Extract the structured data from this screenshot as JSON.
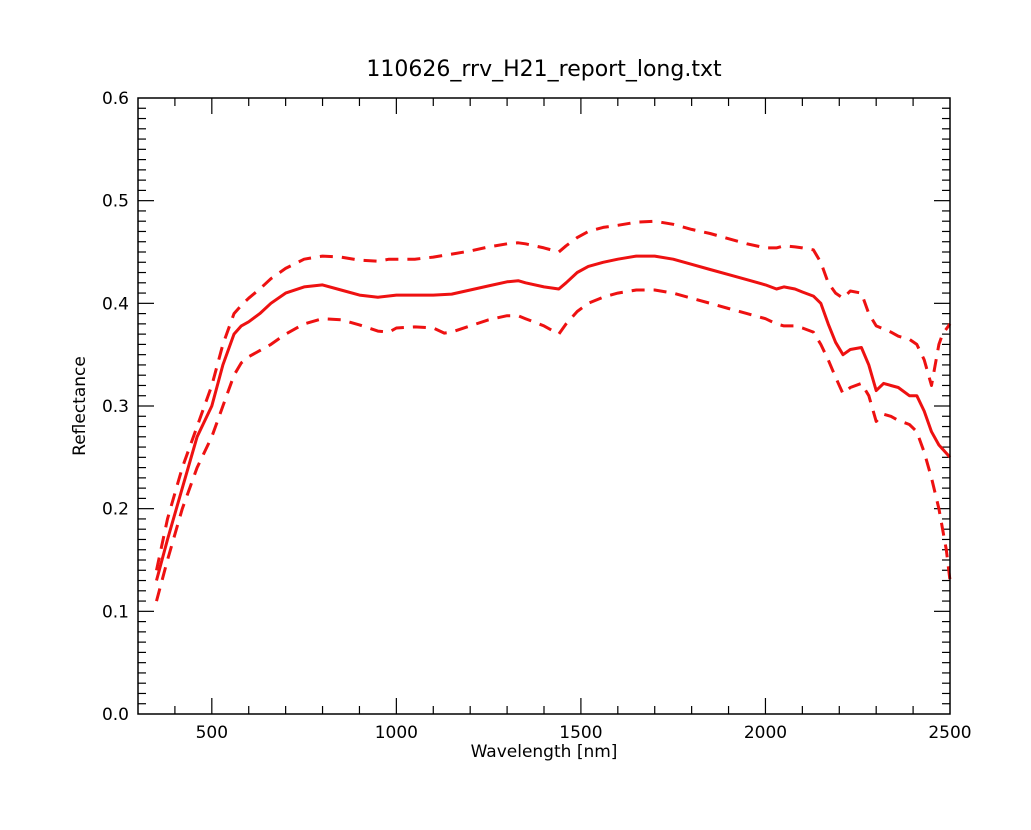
{
  "chart_data": {
    "type": "line",
    "title": "110626_rrv_H21_report_long.txt",
    "xlabel": "Wavelength [nm]",
    "ylabel": "Reflectance",
    "xlim": [
      300,
      2500
    ],
    "ylim": [
      0.0,
      0.6
    ],
    "x_ticks": [
      500,
      1000,
      1500,
      2000,
      2500
    ],
    "x_tick_labels": [
      "500",
      "1000",
      "1500",
      "2000",
      "2500"
    ],
    "y_ticks": [
      0.0,
      0.1,
      0.2,
      0.3,
      0.4,
      0.5,
      0.6
    ],
    "y_tick_labels": [
      "0.0",
      "0.1",
      "0.2",
      "0.3",
      "0.4",
      "0.5",
      "0.6"
    ],
    "grid": false,
    "color": "#ee1111",
    "series": [
      {
        "style": "solid",
        "x": [
          350,
          380,
          420,
          460,
          500,
          530,
          560,
          580,
          600,
          630,
          660,
          700,
          750,
          800,
          850,
          900,
          950,
          1000,
          1050,
          1100,
          1150,
          1200,
          1250,
          1300,
          1330,
          1350,
          1400,
          1440,
          1460,
          1490,
          1520,
          1560,
          1600,
          1650,
          1700,
          1750,
          1800,
          1850,
          1900,
          1950,
          2000,
          2030,
          2050,
          2080,
          2100,
          2130,
          2150,
          2170,
          2190,
          2210,
          2230,
          2260,
          2280,
          2300,
          2320,
          2340,
          2360,
          2390,
          2410,
          2430,
          2450,
          2470,
          2500
        ],
        "y": [
          0.13,
          0.17,
          0.22,
          0.27,
          0.3,
          0.34,
          0.37,
          0.378,
          0.382,
          0.39,
          0.4,
          0.41,
          0.416,
          0.418,
          0.413,
          0.408,
          0.406,
          0.408,
          0.408,
          0.408,
          0.409,
          0.413,
          0.417,
          0.421,
          0.422,
          0.42,
          0.416,
          0.414,
          0.42,
          0.43,
          0.436,
          0.44,
          0.443,
          0.446,
          0.446,
          0.443,
          0.438,
          0.433,
          0.428,
          0.423,
          0.418,
          0.414,
          0.416,
          0.414,
          0.411,
          0.407,
          0.4,
          0.38,
          0.362,
          0.35,
          0.355,
          0.357,
          0.34,
          0.315,
          0.322,
          0.32,
          0.318,
          0.31,
          0.31,
          0.295,
          0.275,
          0.262,
          0.25
        ]
      },
      {
        "style": "dashed",
        "x": [
          350,
          380,
          420,
          460,
          500,
          530,
          560,
          580,
          600,
          630,
          660,
          700,
          750,
          800,
          850,
          900,
          950,
          980,
          1000,
          1050,
          1100,
          1150,
          1200,
          1250,
          1300,
          1330,
          1350,
          1400,
          1440,
          1460,
          1490,
          1520,
          1560,
          1600,
          1650,
          1700,
          1750,
          1800,
          1850,
          1900,
          1950,
          2000,
          2030,
          2050,
          2080,
          2100,
          2130,
          2150,
          2170,
          2190,
          2210,
          2230,
          2260,
          2280,
          2300,
          2320,
          2340,
          2360,
          2390,
          2410,
          2430,
          2450,
          2470,
          2480,
          2500
        ],
        "y": [
          0.14,
          0.19,
          0.24,
          0.28,
          0.32,
          0.36,
          0.39,
          0.398,
          0.405,
          0.414,
          0.424,
          0.434,
          0.443,
          0.446,
          0.445,
          0.442,
          0.441,
          0.443,
          0.443,
          0.443,
          0.445,
          0.448,
          0.451,
          0.455,
          0.458,
          0.459,
          0.458,
          0.454,
          0.45,
          0.456,
          0.464,
          0.47,
          0.474,
          0.476,
          0.479,
          0.48,
          0.477,
          0.472,
          0.468,
          0.463,
          0.458,
          0.454,
          0.454,
          0.456,
          0.455,
          0.454,
          0.452,
          0.44,
          0.42,
          0.41,
          0.405,
          0.412,
          0.41,
          0.39,
          0.378,
          0.375,
          0.372,
          0.368,
          0.365,
          0.36,
          0.345,
          0.32,
          0.36,
          0.37,
          0.38
        ]
      },
      {
        "style": "dashed",
        "x": [
          350,
          380,
          420,
          460,
          500,
          530,
          560,
          580,
          600,
          630,
          660,
          700,
          750,
          800,
          850,
          900,
          950,
          980,
          1000,
          1050,
          1100,
          1130,
          1150,
          1200,
          1250,
          1300,
          1330,
          1350,
          1400,
          1440,
          1460,
          1490,
          1520,
          1560,
          1600,
          1650,
          1700,
          1750,
          1800,
          1850,
          1900,
          1950,
          2000,
          2030,
          2050,
          2080,
          2100,
          2130,
          2150,
          2170,
          2190,
          2210,
          2230,
          2260,
          2280,
          2300,
          2320,
          2340,
          2360,
          2390,
          2410,
          2430,
          2450,
          2470,
          2490,
          2500
        ],
        "y": [
          0.11,
          0.15,
          0.2,
          0.24,
          0.27,
          0.3,
          0.33,
          0.342,
          0.348,
          0.354,
          0.36,
          0.37,
          0.38,
          0.385,
          0.384,
          0.379,
          0.373,
          0.372,
          0.376,
          0.377,
          0.376,
          0.371,
          0.372,
          0.378,
          0.384,
          0.388,
          0.388,
          0.385,
          0.378,
          0.37,
          0.38,
          0.392,
          0.4,
          0.406,
          0.41,
          0.413,
          0.413,
          0.41,
          0.405,
          0.4,
          0.395,
          0.39,
          0.385,
          0.38,
          0.378,
          0.378,
          0.376,
          0.372,
          0.36,
          0.345,
          0.328,
          0.312,
          0.318,
          0.322,
          0.31,
          0.285,
          0.292,
          0.29,
          0.286,
          0.282,
          0.275,
          0.255,
          0.23,
          0.2,
          0.16,
          0.13
        ]
      }
    ]
  }
}
